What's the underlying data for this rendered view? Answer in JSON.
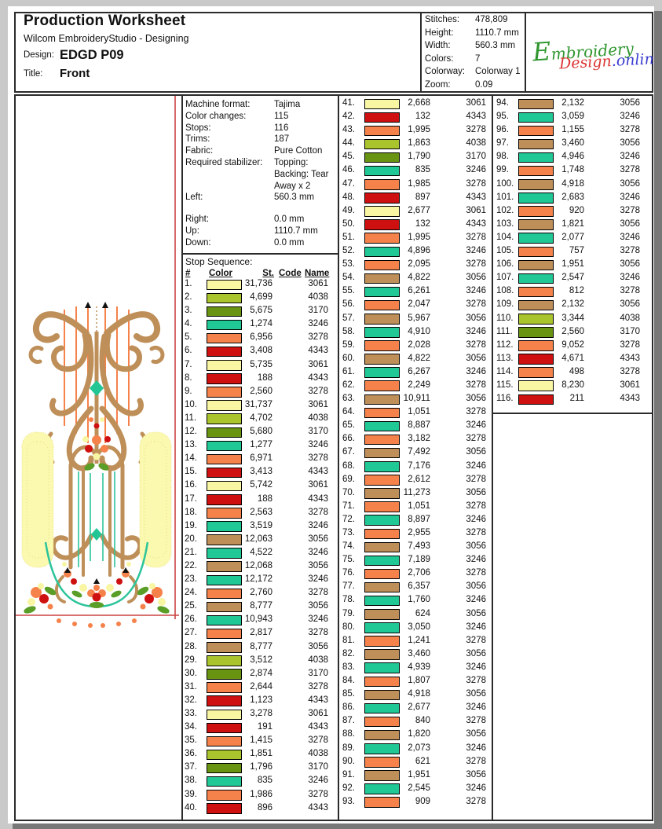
{
  "page": {
    "title": "Production Worksheet",
    "subtitle": "Wilcom EmbroideryStudio - Designing",
    "design_label": "Design:",
    "design_value": "EDGD P09",
    "title_label": "Title:",
    "title_value": "Front"
  },
  "summary": {
    "rows": [
      {
        "label": "Stitches:",
        "value": "478,809"
      },
      {
        "label": "Height:",
        "value": "1110.7 mm"
      },
      {
        "label": "Width:",
        "value": "560.3 mm"
      },
      {
        "label": "Colors:",
        "value": "7"
      },
      {
        "label": "Colorway:",
        "value": "Colorway 1"
      },
      {
        "label": "Zoom:",
        "value": "0.09"
      }
    ]
  },
  "logo": {
    "word1": "Embroidery",
    "word2": "Design",
    "word3": ".online"
  },
  "machine": {
    "rows": [
      {
        "label": "Machine format:",
        "value": "Tajima"
      },
      {
        "label": "Color changes:",
        "value": "115"
      },
      {
        "label": "Stops:",
        "value": "116"
      },
      {
        "label": "Trims:",
        "value": "187"
      },
      {
        "label": "Fabric:",
        "value": "Pure Cotton"
      },
      {
        "label": "Required stabilizer:",
        "value": "Topping:\nBacking: Tear Away x 2"
      },
      {
        "label": "Left:",
        "value": "560.3 mm"
      },
      {
        "label": "Right:",
        "value": "0.0 mm"
      },
      {
        "label": "Up:",
        "value": "1110.7 mm"
      },
      {
        "label": "Down:",
        "value": "0.0 mm"
      }
    ]
  },
  "thread_colors": {
    "3061": "#f8f6a2",
    "4038": "#a9c42d",
    "3170": "#699412",
    "3246": "#20c896",
    "3278": "#f5824a",
    "4343": "#cf1010",
    "3056": "#be8f58"
  },
  "stop_sequence": {
    "title": "Stop Sequence:",
    "headers": {
      "num": "#",
      "color": "Color",
      "st": "St.",
      "code": "Code",
      "name": "Name"
    },
    "entries": [
      [
        1,
        "31,736",
        "3061"
      ],
      [
        2,
        "4,699",
        "4038"
      ],
      [
        3,
        "5,675",
        "3170"
      ],
      [
        4,
        "1,274",
        "3246"
      ],
      [
        5,
        "6,956",
        "3278"
      ],
      [
        6,
        "3,408",
        "4343"
      ],
      [
        7,
        "5,735",
        "3061"
      ],
      [
        8,
        "188",
        "4343"
      ],
      [
        9,
        "2,560",
        "3278"
      ],
      [
        10,
        "31,737",
        "3061"
      ],
      [
        11,
        "4,702",
        "4038"
      ],
      [
        12,
        "5,680",
        "3170"
      ],
      [
        13,
        "1,277",
        "3246"
      ],
      [
        14,
        "6,971",
        "3278"
      ],
      [
        15,
        "3,413",
        "4343"
      ],
      [
        16,
        "5,742",
        "3061"
      ],
      [
        17,
        "188",
        "4343"
      ],
      [
        18,
        "2,563",
        "3278"
      ],
      [
        19,
        "3,519",
        "3246"
      ],
      [
        20,
        "12,063",
        "3056"
      ],
      [
        21,
        "4,522",
        "3246"
      ],
      [
        22,
        "12,068",
        "3056"
      ],
      [
        23,
        "12,172",
        "3246"
      ],
      [
        24,
        "2,760",
        "3278"
      ],
      [
        25,
        "8,777",
        "3056"
      ],
      [
        26,
        "10,943",
        "3246"
      ],
      [
        27,
        "2,817",
        "3278"
      ],
      [
        28,
        "8,777",
        "3056"
      ],
      [
        29,
        "3,512",
        "4038"
      ],
      [
        30,
        "2,874",
        "3170"
      ],
      [
        31,
        "2,644",
        "3278"
      ],
      [
        32,
        "1,123",
        "4343"
      ],
      [
        33,
        "3,278",
        "3061"
      ],
      [
        34,
        "191",
        "4343"
      ],
      [
        35,
        "1,415",
        "3278"
      ],
      [
        36,
        "1,851",
        "4038"
      ],
      [
        37,
        "1,796",
        "3170"
      ],
      [
        38,
        "835",
        "3246"
      ],
      [
        39,
        "1,986",
        "3278"
      ],
      [
        40,
        "896",
        "4343"
      ],
      [
        41,
        "2,668",
        "3061"
      ],
      [
        42,
        "132",
        "4343"
      ],
      [
        43,
        "1,995",
        "3278"
      ],
      [
        44,
        "1,863",
        "4038"
      ],
      [
        45,
        "1,790",
        "3170"
      ],
      [
        46,
        "835",
        "3246"
      ],
      [
        47,
        "1,985",
        "3278"
      ],
      [
        48,
        "897",
        "4343"
      ],
      [
        49,
        "2,677",
        "3061"
      ],
      [
        50,
        "132",
        "4343"
      ],
      [
        51,
        "1,995",
        "3278"
      ],
      [
        52,
        "4,896",
        "3246"
      ],
      [
        53,
        "2,095",
        "3278"
      ],
      [
        54,
        "4,822",
        "3056"
      ],
      [
        55,
        "6,261",
        "3246"
      ],
      [
        56,
        "2,047",
        "3278"
      ],
      [
        57,
        "5,967",
        "3056"
      ],
      [
        58,
        "4,910",
        "3246"
      ],
      [
        59,
        "2,028",
        "3278"
      ],
      [
        60,
        "4,822",
        "3056"
      ],
      [
        61,
        "6,267",
        "3246"
      ],
      [
        62,
        "2,249",
        "3278"
      ],
      [
        63,
        "10,911",
        "3056"
      ],
      [
        64,
        "1,051",
        "3278"
      ],
      [
        65,
        "8,887",
        "3246"
      ],
      [
        66,
        "3,182",
        "3278"
      ],
      [
        67,
        "7,492",
        "3056"
      ],
      [
        68,
        "7,176",
        "3246"
      ],
      [
        69,
        "2,612",
        "3278"
      ],
      [
        70,
        "11,273",
        "3056"
      ],
      [
        71,
        "1,051",
        "3278"
      ],
      [
        72,
        "8,897",
        "3246"
      ],
      [
        73,
        "2,955",
        "3278"
      ],
      [
        74,
        "7,493",
        "3056"
      ],
      [
        75,
        "7,189",
        "3246"
      ],
      [
        76,
        "2,706",
        "3278"
      ],
      [
        77,
        "6,357",
        "3056"
      ],
      [
        78,
        "1,760",
        "3246"
      ],
      [
        79,
        "624",
        "3056"
      ],
      [
        80,
        "3,050",
        "3246"
      ],
      [
        81,
        "1,241",
        "3278"
      ],
      [
        82,
        "3,460",
        "3056"
      ],
      [
        83,
        "4,939",
        "3246"
      ],
      [
        84,
        "1,807",
        "3278"
      ],
      [
        85,
        "4,918",
        "3056"
      ],
      [
        86,
        "2,677",
        "3246"
      ],
      [
        87,
        "840",
        "3278"
      ],
      [
        88,
        "1,820",
        "3056"
      ],
      [
        89,
        "2,073",
        "3246"
      ],
      [
        90,
        "621",
        "3278"
      ],
      [
        91,
        "1,951",
        "3056"
      ],
      [
        92,
        "2,545",
        "3246"
      ],
      [
        93,
        "909",
        "3278"
      ],
      [
        94,
        "2,132",
        "3056"
      ],
      [
        95,
        "3,059",
        "3246"
      ],
      [
        96,
        "1,155",
        "3278"
      ],
      [
        97,
        "3,460",
        "3056"
      ],
      [
        98,
        "4,946",
        "3246"
      ],
      [
        99,
        "1,748",
        "3278"
      ],
      [
        100,
        "4,918",
        "3056"
      ],
      [
        101,
        "2,683",
        "3246"
      ],
      [
        102,
        "920",
        "3278"
      ],
      [
        103,
        "1,821",
        "3056"
      ],
      [
        104,
        "2,077",
        "3246"
      ],
      [
        105,
        "757",
        "3278"
      ],
      [
        106,
        "1,951",
        "3056"
      ],
      [
        107,
        "2,547",
        "3246"
      ],
      [
        108,
        "812",
        "3278"
      ],
      [
        109,
        "2,132",
        "3056"
      ],
      [
        110,
        "3,344",
        "4038"
      ],
      [
        111,
        "2,560",
        "3170"
      ],
      [
        112,
        "9,052",
        "3278"
      ],
      [
        113,
        "4,671",
        "4343"
      ],
      [
        114,
        "498",
        "3278"
      ],
      [
        115,
        "8,230",
        "3061"
      ],
      [
        116,
        "211",
        "4343"
      ]
    ]
  }
}
